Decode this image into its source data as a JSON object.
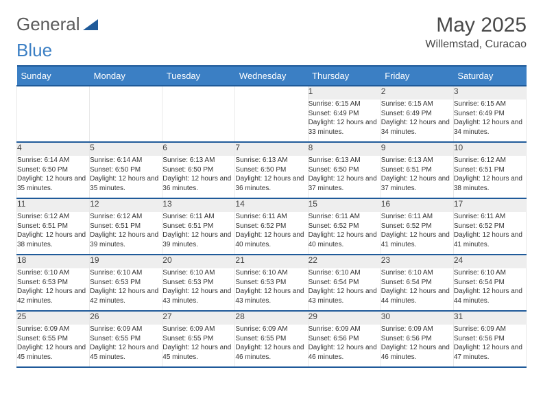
{
  "logo": {
    "word1": "General",
    "word2": "Blue",
    "triangle_color": "#1f5a99"
  },
  "title": "May 2025",
  "location": "Willemstad, Curacao",
  "colors": {
    "header_bg": "#3b7fc4",
    "header_text": "#ffffff",
    "rule": "#1f5a99",
    "daynum_bg": "#eeeeee",
    "text": "#333333"
  },
  "weekdays": [
    "Sunday",
    "Monday",
    "Tuesday",
    "Wednesday",
    "Thursday",
    "Friday",
    "Saturday"
  ],
  "weeks": [
    [
      null,
      null,
      null,
      null,
      {
        "d": "1",
        "sr": "6:15 AM",
        "ss": "6:49 PM",
        "dl": "12 hours and 33 minutes."
      },
      {
        "d": "2",
        "sr": "6:15 AM",
        "ss": "6:49 PM",
        "dl": "12 hours and 34 minutes."
      },
      {
        "d": "3",
        "sr": "6:15 AM",
        "ss": "6:49 PM",
        "dl": "12 hours and 34 minutes."
      }
    ],
    [
      {
        "d": "4",
        "sr": "6:14 AM",
        "ss": "6:50 PM",
        "dl": "12 hours and 35 minutes."
      },
      {
        "d": "5",
        "sr": "6:14 AM",
        "ss": "6:50 PM",
        "dl": "12 hours and 35 minutes."
      },
      {
        "d": "6",
        "sr": "6:13 AM",
        "ss": "6:50 PM",
        "dl": "12 hours and 36 minutes."
      },
      {
        "d": "7",
        "sr": "6:13 AM",
        "ss": "6:50 PM",
        "dl": "12 hours and 36 minutes."
      },
      {
        "d": "8",
        "sr": "6:13 AM",
        "ss": "6:50 PM",
        "dl": "12 hours and 37 minutes."
      },
      {
        "d": "9",
        "sr": "6:13 AM",
        "ss": "6:51 PM",
        "dl": "12 hours and 37 minutes."
      },
      {
        "d": "10",
        "sr": "6:12 AM",
        "ss": "6:51 PM",
        "dl": "12 hours and 38 minutes."
      }
    ],
    [
      {
        "d": "11",
        "sr": "6:12 AM",
        "ss": "6:51 PM",
        "dl": "12 hours and 38 minutes."
      },
      {
        "d": "12",
        "sr": "6:12 AM",
        "ss": "6:51 PM",
        "dl": "12 hours and 39 minutes."
      },
      {
        "d": "13",
        "sr": "6:11 AM",
        "ss": "6:51 PM",
        "dl": "12 hours and 39 minutes."
      },
      {
        "d": "14",
        "sr": "6:11 AM",
        "ss": "6:52 PM",
        "dl": "12 hours and 40 minutes."
      },
      {
        "d": "15",
        "sr": "6:11 AM",
        "ss": "6:52 PM",
        "dl": "12 hours and 40 minutes."
      },
      {
        "d": "16",
        "sr": "6:11 AM",
        "ss": "6:52 PM",
        "dl": "12 hours and 41 minutes."
      },
      {
        "d": "17",
        "sr": "6:11 AM",
        "ss": "6:52 PM",
        "dl": "12 hours and 41 minutes."
      }
    ],
    [
      {
        "d": "18",
        "sr": "6:10 AM",
        "ss": "6:53 PM",
        "dl": "12 hours and 42 minutes."
      },
      {
        "d": "19",
        "sr": "6:10 AM",
        "ss": "6:53 PM",
        "dl": "12 hours and 42 minutes."
      },
      {
        "d": "20",
        "sr": "6:10 AM",
        "ss": "6:53 PM",
        "dl": "12 hours and 43 minutes."
      },
      {
        "d": "21",
        "sr": "6:10 AM",
        "ss": "6:53 PM",
        "dl": "12 hours and 43 minutes."
      },
      {
        "d": "22",
        "sr": "6:10 AM",
        "ss": "6:54 PM",
        "dl": "12 hours and 43 minutes."
      },
      {
        "d": "23",
        "sr": "6:10 AM",
        "ss": "6:54 PM",
        "dl": "12 hours and 44 minutes."
      },
      {
        "d": "24",
        "sr": "6:10 AM",
        "ss": "6:54 PM",
        "dl": "12 hours and 44 minutes."
      }
    ],
    [
      {
        "d": "25",
        "sr": "6:09 AM",
        "ss": "6:55 PM",
        "dl": "12 hours and 45 minutes."
      },
      {
        "d": "26",
        "sr": "6:09 AM",
        "ss": "6:55 PM",
        "dl": "12 hours and 45 minutes."
      },
      {
        "d": "27",
        "sr": "6:09 AM",
        "ss": "6:55 PM",
        "dl": "12 hours and 45 minutes."
      },
      {
        "d": "28",
        "sr": "6:09 AM",
        "ss": "6:55 PM",
        "dl": "12 hours and 46 minutes."
      },
      {
        "d": "29",
        "sr": "6:09 AM",
        "ss": "6:56 PM",
        "dl": "12 hours and 46 minutes."
      },
      {
        "d": "30",
        "sr": "6:09 AM",
        "ss": "6:56 PM",
        "dl": "12 hours and 46 minutes."
      },
      {
        "d": "31",
        "sr": "6:09 AM",
        "ss": "6:56 PM",
        "dl": "12 hours and 47 minutes."
      }
    ]
  ],
  "labels": {
    "sunrise": "Sunrise:",
    "sunset": "Sunset:",
    "daylight": "Daylight:"
  }
}
